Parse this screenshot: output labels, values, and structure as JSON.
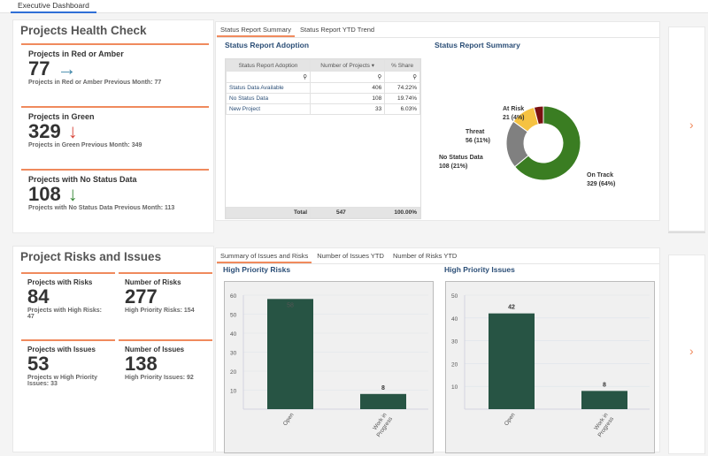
{
  "tab": "Executive Dashboard",
  "health": {
    "title": "Projects Health Check",
    "kpis": [
      {
        "title": "Projects in Red or Amber",
        "value": "77",
        "arrow": "→",
        "arrow_color": "#3e86a8",
        "sub": "Projects in Red or Amber Previous Month: 77"
      },
      {
        "title": "Projects in Green",
        "value": "329",
        "arrow": "↓",
        "arrow_color": "#d9483b",
        "sub": "Projects in Green Previous Month: 349"
      },
      {
        "title": "Projects with No Status Data",
        "value": "108",
        "arrow": "↓",
        "arrow_color": "#3a8a3a",
        "sub": "Projects with No Status Data Previous Month: 113"
      }
    ]
  },
  "status": {
    "tabs": [
      "Status Report Summary",
      "Status Report YTD Trend"
    ],
    "adoption_title": "Status Report Adoption",
    "columns": [
      "Status Report Adoption",
      "Number of Projects ▾",
      "% Share"
    ],
    "rows": [
      [
        "Status Data Available",
        "406",
        "74.22%"
      ],
      [
        "No Status Data",
        "108",
        "19.74%"
      ],
      [
        "New Project",
        "33",
        "6.03%"
      ]
    ],
    "total": [
      "Total",
      "547",
      "100.00%"
    ],
    "summary_title": "Status Report Summary"
  },
  "risks": {
    "title": "Project Risks and Issues",
    "kpis": [
      {
        "title": "Projects with Risks",
        "value": "84",
        "sub": "Projects with High Risks: 47"
      },
      {
        "title": "Number of Risks",
        "value": "277",
        "sub": "High Priority Risks: 154"
      },
      {
        "title": "Projects with Issues",
        "value": "53",
        "sub": "Projects w High Priority Issues: 33"
      },
      {
        "title": "Number of Issues",
        "value": "138",
        "sub": "High Priority Issues: 92"
      }
    ],
    "tabs": [
      "Summary of Issues and Risks",
      "Number of Issues YTD",
      "Number of Risks YTD"
    ]
  },
  "chart_data": [
    {
      "type": "pie",
      "title": "Status Report Summary",
      "donut": true,
      "labels": [
        "On Track",
        "No Status Data",
        "Threat",
        "At Risk"
      ],
      "values": [
        329,
        108,
        56,
        21
      ],
      "percent": [
        "64%",
        "21%",
        "11%",
        "4%"
      ],
      "colors": [
        "#3a7d22",
        "#808080",
        "#f5c242",
        "#7a1010"
      ]
    },
    {
      "type": "bar",
      "title": "High Priority Risks",
      "categories": [
        "Open",
        "Work in Progress"
      ],
      "values": [
        58,
        8
      ],
      "ylim": [
        0,
        60
      ],
      "yticks": [
        10,
        20,
        30,
        40,
        50,
        60
      ],
      "color": "#275444"
    },
    {
      "type": "bar",
      "title": "High Priority Issues",
      "categories": [
        "Open",
        "Work in Progress"
      ],
      "values": [
        42,
        8
      ],
      "ylim": [
        0,
        50
      ],
      "yticks": [
        10,
        20,
        30,
        40,
        50
      ],
      "color": "#275444"
    }
  ],
  "nav": {
    "next_icon": "chevron-right-icon"
  }
}
